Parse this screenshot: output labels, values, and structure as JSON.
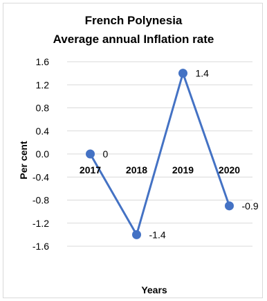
{
  "chart_data": {
    "type": "line",
    "title": "French Polynesia",
    "subtitle": "Average annual Inflation rate",
    "xlabel": "Years",
    "ylabel": "Per cent",
    "categories": [
      "2017",
      "2018",
      "2019",
      "2020"
    ],
    "series": [
      {
        "values": [
          0,
          -1.4,
          1.4,
          -0.9
        ],
        "data_labels": [
          "0",
          "-1.4",
          "1.4",
          "-0.9"
        ]
      }
    ],
    "ylim": [
      -1.6,
      1.6
    ],
    "yticks": [
      "1.6",
      "1.2",
      "0.8",
      "0.4",
      "0.0",
      "-0.4",
      "-0.8",
      "-1.2",
      "-1.6"
    ],
    "ytick_values": [
      1.6,
      1.2,
      0.8,
      0.4,
      0.0,
      -0.4,
      -0.8,
      -1.2,
      -1.6
    ],
    "grid": true,
    "legend": "none",
    "colors": {
      "series": "#4472c4",
      "grid": "#d9d9d9",
      "text": "#000000"
    }
  }
}
